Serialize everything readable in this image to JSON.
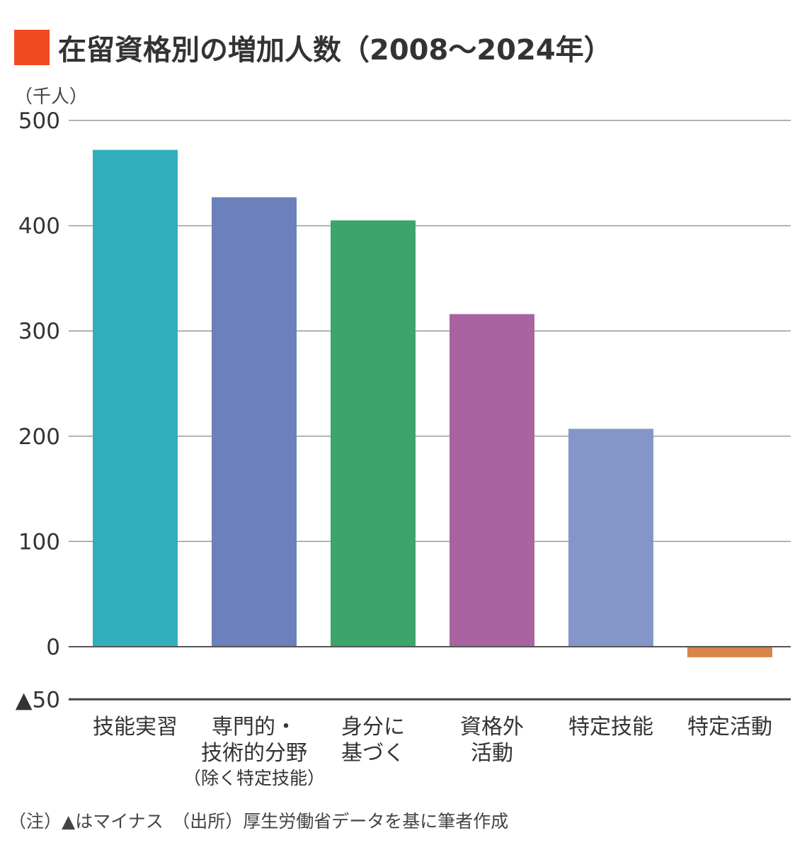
{
  "title": "在留資格別の増加人数（2008〜2024年）",
  "colors": {
    "title_marker": "#f04a23",
    "grid": "#999999",
    "baseline": "#555555"
  },
  "note": "（注）▲はマイナス　（出所）厚生労働省データを基に筆者作成",
  "chart_data": {
    "type": "bar",
    "title": "在留資格別の増加人数（2008〜2024年）",
    "ylabel": "（千人）",
    "xlabel": "",
    "ylim": [
      -50,
      500
    ],
    "grid": true,
    "yticks": [
      500,
      400,
      300,
      200,
      100,
      0,
      -50
    ],
    "ytick_labels": [
      "500",
      "400",
      "300",
      "200",
      "100",
      "0",
      "▲50"
    ],
    "categories": [
      [
        "技能実習"
      ],
      [
        "専門的・",
        "技術的分野",
        "（除く特定技能）"
      ],
      [
        "身分に",
        "基づく"
      ],
      [
        "資格外",
        "活動"
      ],
      [
        "特定技能"
      ],
      [
        "特定活動"
      ]
    ],
    "values": [
      472,
      427,
      405,
      316,
      207,
      -10
    ],
    "bar_colors": [
      "#31aebd",
      "#6c80bb",
      "#3ea56a",
      "#a963a0",
      "#8496c8",
      "#d9854a"
    ]
  }
}
